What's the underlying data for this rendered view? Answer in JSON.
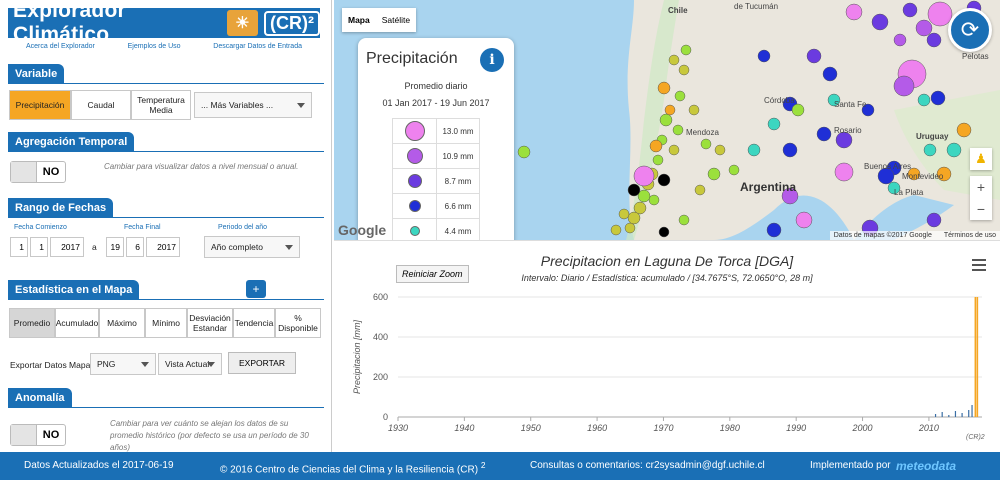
{
  "app": {
    "title": "Explorador Climático",
    "brand": "(CR)²",
    "links": [
      "Acerca del Explorador",
      "Ejemplos de Uso",
      "Descargar Datos de Entrada"
    ]
  },
  "variable": {
    "section": "Variable",
    "buttons": [
      "Precipitación",
      "Caudal",
      "Temperatura Media"
    ],
    "more": "... Más Variables ..."
  },
  "agregacion": {
    "section": "Agregación Temporal",
    "toggle": "NO",
    "hint": "Cambiar para visualizar datos a nivel mensual o anual."
  },
  "fechas": {
    "section": "Rango de Fechas",
    "start_label": "Fecha Comienzo",
    "end_label": "Fecha Final",
    "period_label": "Periodo del año",
    "start_day": "1",
    "start_month": "1",
    "start_year": "2017",
    "sep": "a",
    "end_day": "19",
    "end_month": "6",
    "end_year": "2017",
    "period": "Año completo"
  },
  "estadistica": {
    "section": "Estadística en el Mapa",
    "plus": "+",
    "buttons": [
      "Promedio",
      "Acumulado",
      "Máximo",
      "Mínimo",
      "Desviación Estandar",
      "Tendencia",
      "% Disponible"
    ]
  },
  "export": {
    "label": "Exportar Datos Mapa:",
    "format": "PNG",
    "view": "Vista Actual",
    "button": "EXPORTAR"
  },
  "anomalia": {
    "section": "Anomalía",
    "toggle": "NO",
    "hint": "Cambiar para ver cuánto se alejan los datos de su promedio histórico (por defecto se usa un período de 30 años)"
  },
  "map": {
    "type_map": "Mapa",
    "type_sat": "Satélite",
    "labels": [
      "Chile",
      "de Tucumán",
      "Córdoba",
      "Santa Fe",
      "Rosario",
      "Mendoza",
      "Argentina",
      "Buenos Aires",
      "Montevideo",
      "Uruguay",
      "La Plata",
      "Pelotas"
    ],
    "attribution": "Datos de mapas ©2017 Google",
    "terms": "Términos de uso",
    "google": "Google",
    "zoom_in": "+",
    "zoom_out": "−"
  },
  "legend": {
    "title": "Precipitación",
    "info": "i",
    "subtitle": "Promedio diario",
    "range": "01 Jan 2017 - 19 Jun 2017",
    "entries": [
      {
        "label": "13.0 mm",
        "color": "#ee82ee",
        "size": 20
      },
      {
        "label": "10.9 mm",
        "color": "#b45be8",
        "size": 16
      },
      {
        "label": "8.7 mm",
        "color": "#6b3be0",
        "size": 14
      },
      {
        "label": "6.6 mm",
        "color": "#1f2fd6",
        "size": 12
      },
      {
        "label": "4.4 mm",
        "color": "#3cd6c0",
        "size": 10
      }
    ]
  },
  "chart": {
    "title": "Precipitacion en Laguna De Torca [DGA]",
    "subtitle": "Intervalo: Diario / Estadística: acumulado / [34.7675°S, 72.0650°O, 28 m]",
    "reset": "Reiniciar Zoom",
    "credit": "(CR)2"
  },
  "chart_data": {
    "type": "bar",
    "title": "Precipitacion en Laguna De Torca [DGA]",
    "ylabel": "Precipitacion [mm]",
    "xlabel": "",
    "ylim": [
      0,
      600
    ],
    "xlim": [
      1930,
      2018
    ],
    "x_ticks": [
      1930,
      1940,
      1950,
      1960,
      1970,
      1980,
      1990,
      2000,
      2010
    ],
    "y_ticks": [
      0,
      200,
      400,
      600
    ],
    "series": [
      {
        "name": "Precipitacion",
        "x": [
          2011,
          2012,
          2013,
          2014,
          2015,
          2016,
          2016.5,
          2017,
          2017.3
        ],
        "values": [
          15,
          25,
          10,
          30,
          20,
          35,
          60,
          600,
          600
        ]
      }
    ]
  },
  "footer": {
    "updated": "Datos Actualizados el 2017-06-19",
    "copyright": "© 2016 Centro de Ciencias del Clima y la Resiliencia (CR)",
    "copyright_sup": "2",
    "contact": "Consultas o comentarios: cr2sysadmin@dgf.uchile.cl",
    "implemented": "Implementado por",
    "meteo": "meteodata"
  }
}
